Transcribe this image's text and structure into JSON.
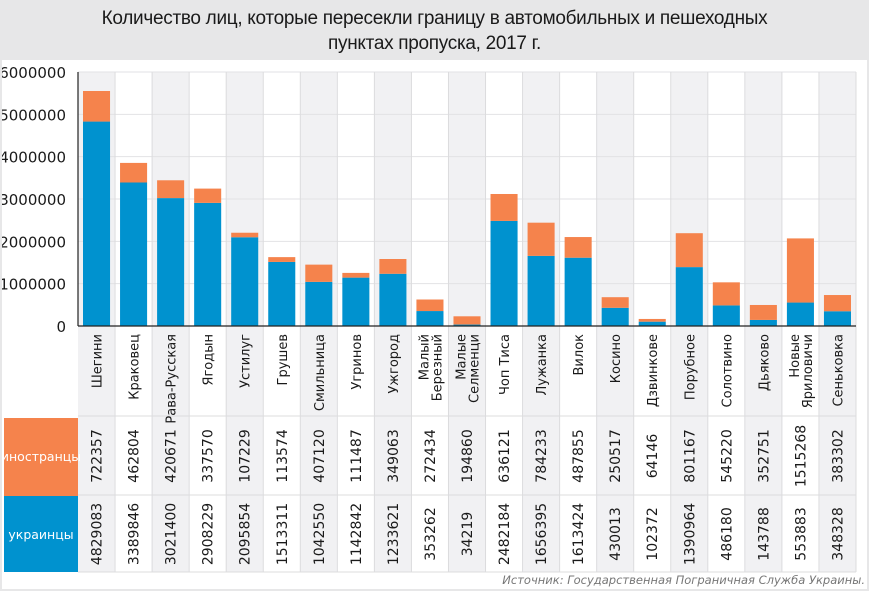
{
  "chart_data": {
    "type": "bar",
    "stacked": true,
    "title": "Количество лиц, которые пересекли границу в автомобильных и пешеходных пунктах пропуска, 2017 г.",
    "title_lines": [
      "Количество лиц, которые пересекли границу в автомобильных и пешеходных",
      "пунктах пропуска, 2017 г."
    ],
    "xlabel": "",
    "ylabel": "",
    "ylim": [
      0,
      6000000
    ],
    "yticks": [
      0,
      1000000,
      2000000,
      3000000,
      4000000,
      5000000,
      6000000
    ],
    "ytick_labels": [
      "0",
      "1000000",
      "2000000",
      "3000000",
      "4000000",
      "5000000",
      "6000000"
    ],
    "grid": true,
    "legend": "data-table-rows-bottom",
    "categories": [
      [
        "Шегини"
      ],
      [
        "Краковец"
      ],
      [
        "Рава-Русская"
      ],
      [
        "Ягодын"
      ],
      [
        "Устилуг"
      ],
      [
        "Грушев"
      ],
      [
        "Смильница"
      ],
      [
        "Угринов"
      ],
      [
        "Ужгород"
      ],
      [
        "Малый",
        "Березный"
      ],
      [
        "Малые",
        "Селменци"
      ],
      [
        "Чоп Тиса"
      ],
      [
        "Лужанка"
      ],
      [
        "Вилок"
      ],
      [
        "Косино"
      ],
      [
        "Дзвинкове"
      ],
      [
        "Порубное"
      ],
      [
        "Солотвино"
      ],
      [
        "Дьяково"
      ],
      [
        "Новые",
        "Яриловичи"
      ],
      [
        "Сеньковка"
      ]
    ],
    "series": [
      {
        "name": "украинцы",
        "color": "#0092cf",
        "values": [
          4829083,
          3389846,
          3021400,
          2908229,
          2095854,
          1513311,
          1042550,
          1142842,
          1233621,
          353262,
          34219,
          2482184,
          1656395,
          1613424,
          430013,
          102372,
          1390964,
          486180,
          143788,
          553883,
          348328
        ]
      },
      {
        "name": "иностранцы",
        "color": "#f5834c",
        "values": [
          722357,
          462804,
          420671,
          337570,
          107229,
          113574,
          407120,
          111487,
          349063,
          272434,
          194860,
          636121,
          784233,
          487855,
          250517,
          64146,
          801167,
          545220,
          352751,
          1515268,
          383302
        ]
      }
    ]
  },
  "source": "Источник: Государственная Пограничная Служба Украины."
}
